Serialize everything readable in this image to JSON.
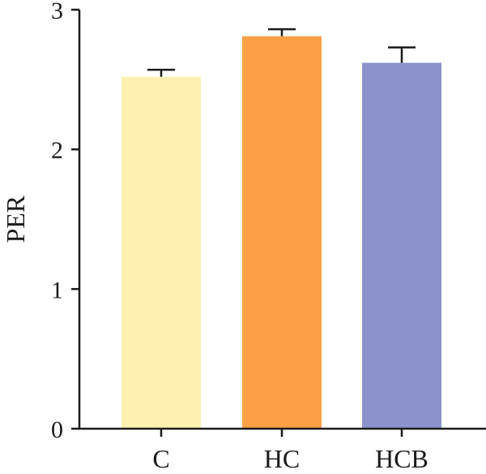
{
  "chart_data": {
    "type": "bar",
    "title": "",
    "xlabel": "",
    "ylabel": "PER",
    "ylim": [
      0,
      3
    ],
    "yticks": [
      0,
      1,
      2,
      3
    ],
    "grid": false,
    "categories": [
      "C",
      "HC",
      "HCB"
    ],
    "values": [
      2.52,
      2.81,
      2.62
    ],
    "errors": [
      0.05,
      0.05,
      0.11
    ],
    "colors": [
      "#fdf0b0",
      "#fba045",
      "#8c93cc"
    ],
    "axis_color": "#1a1a1a"
  }
}
